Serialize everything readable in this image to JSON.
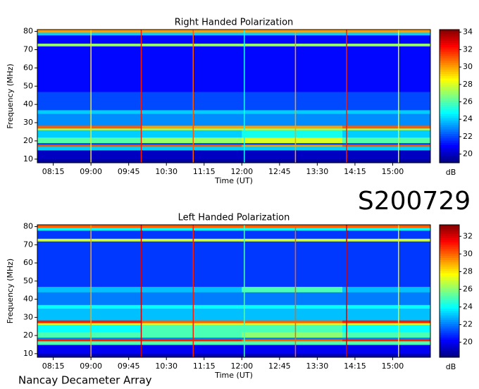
{
  "annotations": [
    "S200729",
    "Nancay Decameter Array"
  ],
  "chart_data": [
    {
      "type": "heatmap",
      "title": "Right Handed Polarization",
      "x_label": "Time (UT)",
      "y_label": "Frequency (MHz)",
      "colorbar_label": "dB",
      "xlim": [
        476,
        945
      ],
      "xticks": [
        {
          "value": 495,
          "label": "08:15"
        },
        {
          "value": 540,
          "label": "09:00"
        },
        {
          "value": 585,
          "label": "09:45"
        },
        {
          "value": 630,
          "label": "10:30"
        },
        {
          "value": 675,
          "label": "11:15"
        },
        {
          "value": 720,
          "label": "12:00"
        },
        {
          "value": 765,
          "label": "12:45"
        },
        {
          "value": 810,
          "label": "13:30"
        },
        {
          "value": 855,
          "label": "14:15"
        },
        {
          "value": 900,
          "label": "15:00"
        }
      ],
      "ylim": [
        8,
        81
      ],
      "yticks": [
        10,
        20,
        30,
        40,
        50,
        60,
        70,
        80
      ],
      "clim": [
        19,
        34.3
      ],
      "cticks": [
        20,
        22,
        24,
        26,
        28,
        30,
        32,
        34
      ],
      "xbins": [
        476,
        600,
        720,
        840,
        945
      ],
      "ybins": [
        8,
        10,
        15,
        17,
        18,
        19,
        22,
        26,
        27,
        28.5,
        35,
        37,
        44,
        47,
        72,
        73.5,
        78,
        79.5,
        81
      ],
      "values": [
        [
          19.5,
          19.5,
          19.5,
          19.5
        ],
        [
          20,
          20,
          20,
          20
        ],
        [
          24,
          24,
          24,
          24
        ],
        [
          31,
          31,
          30,
          31
        ],
        [
          22,
          22,
          22,
          22
        ],
        [
          26,
          27,
          28,
          26
        ],
        [
          24,
          24,
          25,
          24
        ],
        [
          27,
          27,
          27,
          27
        ],
        [
          31,
          30,
          30,
          31
        ],
        [
          23,
          23,
          23,
          23
        ],
        [
          24,
          24,
          24,
          24
        ],
        [
          22,
          22,
          22,
          22
        ],
        [
          22,
          22,
          22,
          22
        ],
        [
          21,
          21,
          21,
          21
        ],
        [
          27,
          27,
          27,
          27
        ],
        [
          21,
          21,
          21,
          21
        ],
        [
          24,
          24,
          24,
          24
        ],
        [
          30,
          30,
          30,
          30
        ]
      ],
      "vlines": [
        {
          "x": 540,
          "value": 29
        },
        {
          "x": 600,
          "value": 32
        },
        {
          "x": 662,
          "value": 31
        },
        {
          "x": 723,
          "value": 25
        },
        {
          "x": 784,
          "value": 30
        },
        {
          "x": 845,
          "value": 32
        },
        {
          "x": 907,
          "value": 28
        }
      ]
    },
    {
      "type": "heatmap",
      "title": "Left Handed Polarization",
      "x_label": "Time (UT)",
      "y_label": "Frequency (MHz)",
      "colorbar_label": "dB",
      "xlim": [
        476,
        945
      ],
      "xticks": [
        {
          "value": 495,
          "label": "08:15"
        },
        {
          "value": 540,
          "label": "09:00"
        },
        {
          "value": 585,
          "label": "09:45"
        },
        {
          "value": 630,
          "label": "10:30"
        },
        {
          "value": 675,
          "label": "11:15"
        },
        {
          "value": 720,
          "label": "12:00"
        },
        {
          "value": 765,
          "label": "12:45"
        },
        {
          "value": 810,
          "label": "13:30"
        },
        {
          "value": 855,
          "label": "14:15"
        },
        {
          "value": 900,
          "label": "15:00"
        }
      ],
      "ylim": [
        8,
        81
      ],
      "yticks": [
        10,
        20,
        30,
        40,
        50,
        60,
        70,
        80
      ],
      "clim": [
        18.3,
        33.3
      ],
      "cticks": [
        20,
        22,
        24,
        26,
        28,
        30,
        32
      ],
      "xbins": [
        476,
        600,
        720,
        840,
        945
      ],
      "ybins": [
        8,
        10,
        15,
        17,
        18,
        19,
        22,
        26,
        27,
        28.5,
        35,
        37,
        44,
        47,
        72,
        73.5,
        78,
        79.5,
        81
      ],
      "values": [
        [
          19,
          19,
          19,
          19
        ],
        [
          20,
          20,
          20,
          20
        ],
        [
          25,
          25,
          25,
          25
        ],
        [
          31,
          31,
          30,
          31
        ],
        [
          22,
          22,
          22,
          22
        ],
        [
          25,
          25,
          26,
          25
        ],
        [
          24,
          25,
          25,
          24
        ],
        [
          27,
          27,
          27,
          27
        ],
        [
          31,
          30,
          30,
          31
        ],
        [
          23,
          23,
          23,
          23
        ],
        [
          24,
          24,
          24,
          24
        ],
        [
          22,
          22,
          22,
          22
        ],
        [
          23,
          23,
          25,
          23
        ],
        [
          21,
          21,
          21,
          21
        ],
        [
          27,
          27,
          27,
          27
        ],
        [
          21,
          21,
          21,
          21
        ],
        [
          24,
          24,
          24,
          24
        ],
        [
          30,
          30,
          30,
          30
        ]
      ],
      "vlines": [
        {
          "x": 540,
          "value": 29
        },
        {
          "x": 600,
          "value": 32
        },
        {
          "x": 662,
          "value": 31
        },
        {
          "x": 723,
          "value": 25
        },
        {
          "x": 784,
          "value": 30
        },
        {
          "x": 845,
          "value": 32
        },
        {
          "x": 907,
          "value": 28
        }
      ]
    }
  ]
}
